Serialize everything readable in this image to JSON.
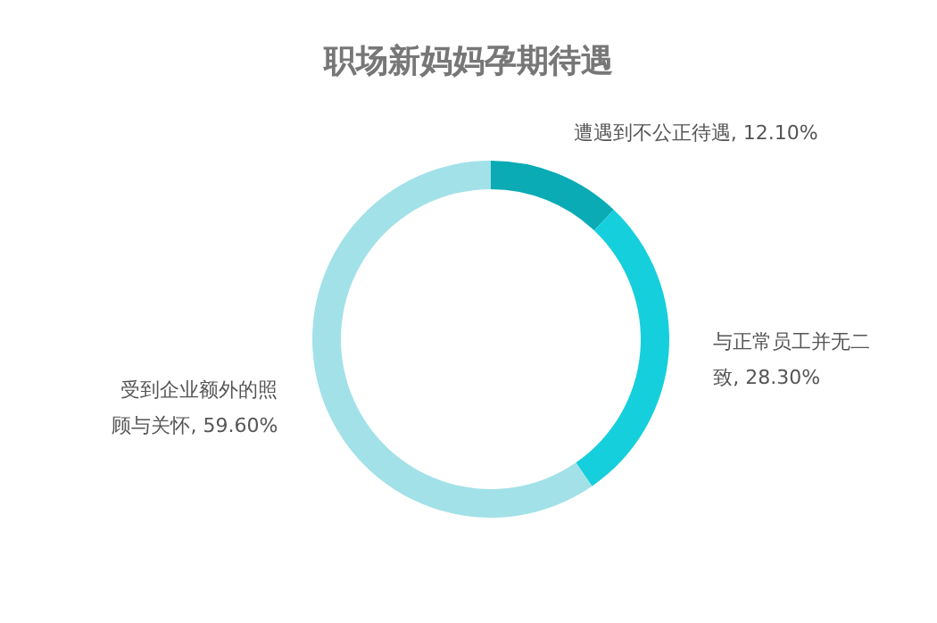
{
  "chart_data": {
    "type": "donut",
    "title": "职场新妈妈孕期待遇",
    "categories": [
      "遭遇到不公正待遇",
      "与正常员工并无二致",
      "受到企业额外的照顾与关怀"
    ],
    "values": [
      12.1,
      28.3,
      59.6
    ],
    "value_labels": [
      "12.10%",
      "28.30%",
      "59.60%"
    ],
    "colors": [
      "#0aabb5",
      "#16cfdc",
      "#a2e1e8"
    ]
  }
}
